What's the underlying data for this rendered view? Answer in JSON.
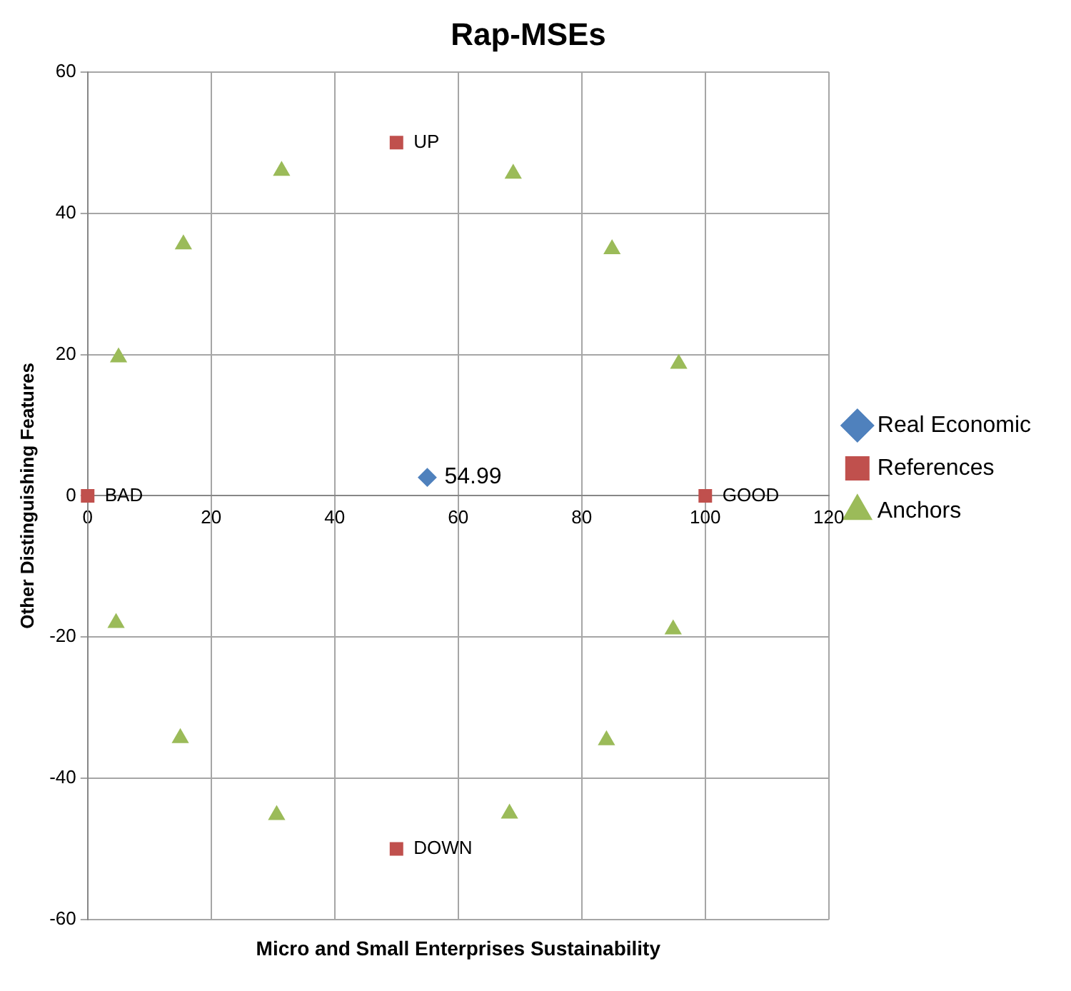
{
  "chart_data": {
    "type": "scatter",
    "title": "Rap-MSEs",
    "xlabel": "Micro and Small Enterprises Sustainability",
    "ylabel": "Other Distinguishing Features",
    "xlim": [
      0,
      120
    ],
    "xticks": [
      0,
      20,
      40,
      60,
      80,
      100,
      120
    ],
    "ylim": [
      -60,
      60
    ],
    "yticks": [
      -60,
      -40,
      -20,
      0,
      20,
      40,
      60
    ],
    "grid": true,
    "legend": "right",
    "annotations": [
      {
        "text": "54.99",
        "x": 54.99,
        "y": 2.6
      }
    ],
    "series": [
      {
        "name": "Real Economic",
        "color": "#4f81bd",
        "marker": "diamond",
        "x": [
          54.99
        ],
        "values": [
          2.6
        ]
      },
      {
        "name": "References",
        "color": "#c0504d",
        "marker": "square",
        "x": [
          0,
          100,
          50,
          50
        ],
        "values": [
          0,
          0,
          50,
          -50
        ],
        "value_labels": [
          "BAD",
          "GOOD",
          "UP",
          "DOWN"
        ]
      },
      {
        "name": "Anchors",
        "color": "#9bbb59",
        "marker": "triangle",
        "x": [
          5,
          15.5,
          31.4,
          68.9,
          84.9,
          95.7,
          4.6,
          15,
          30.6,
          68.3,
          84,
          94.8
        ],
        "values": [
          19.6,
          35.6,
          46,
          45.6,
          34.9,
          18.7,
          -18,
          -34.3,
          -45.2,
          -45,
          -34.6,
          -18.9
        ]
      }
    ]
  }
}
